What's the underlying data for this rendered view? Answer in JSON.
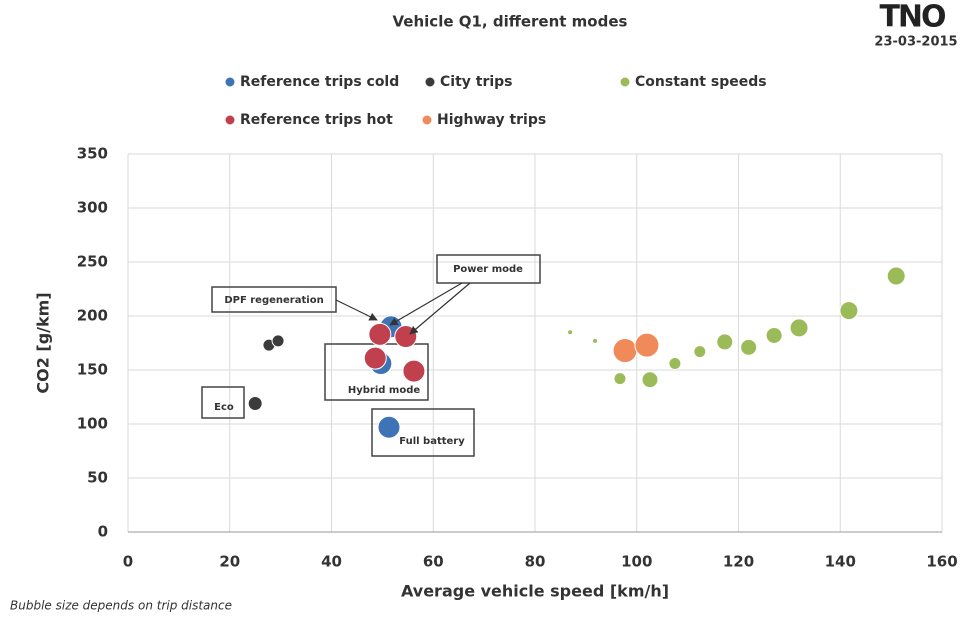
{
  "chart_data": {
    "type": "bubble",
    "title": "Vehicle Q1, different modes",
    "logo": "TNO",
    "date": "23-03-2015",
    "x_label": "Average vehicle speed [km/h]",
    "y_label": "CO2 [g/km]",
    "note": "Bubble size depends on trip distance",
    "xlim": [
      0,
      160
    ],
    "xticks": [
      0,
      20,
      40,
      60,
      80,
      100,
      120,
      140,
      160
    ],
    "ylim": [
      0,
      350
    ],
    "yticks": [
      0,
      50,
      100,
      150,
      200,
      250,
      300,
      350
    ],
    "grid": true,
    "annotations": [
      "DPF regeneration",
      "Power mode",
      "Hybrid mode",
      "Eco",
      "Full battery"
    ],
    "series": [
      {
        "name": "Reference trips cold",
        "color": "#3e74b5",
        "x": [
          51.7,
          49.7,
          51.3
        ],
        "values": [
          190,
          156,
          97
        ],
        "sizes": [
          11,
          11,
          11
        ]
      },
      {
        "name": "Reference trips hot",
        "color": "#c0404e",
        "x": [
          49.5,
          54.6,
          48.6,
          56.2
        ],
        "values": [
          183,
          181,
          161,
          149
        ],
        "sizes": [
          11,
          11,
          11,
          11
        ]
      },
      {
        "name": "City trips",
        "color": "#3b3b3b",
        "x": [
          27.7,
          29.5,
          25
        ],
        "values": [
          173,
          177,
          119
        ],
        "sizes": [
          6,
          6,
          7
        ]
      },
      {
        "name": "Highway trips",
        "color": "#f08a5a",
        "x": [
          97.7,
          102
        ],
        "values": [
          168,
          173
        ],
        "sizes": [
          12,
          12
        ]
      },
      {
        "name": "Constant speeds",
        "color": "#9bbb59",
        "x": [
          86.9,
          91.8,
          96.7,
          102.6,
          107.5,
          112.4,
          117.3,
          122,
          127,
          131.9,
          141.7,
          151
        ],
        "values": [
          185,
          177,
          142,
          141,
          156,
          167,
          176,
          171,
          182,
          189,
          205,
          237
        ],
        "sizes": [
          2.5,
          2.5,
          6,
          8,
          6,
          6,
          8,
          8,
          8,
          9,
          9,
          9
        ]
      }
    ]
  }
}
